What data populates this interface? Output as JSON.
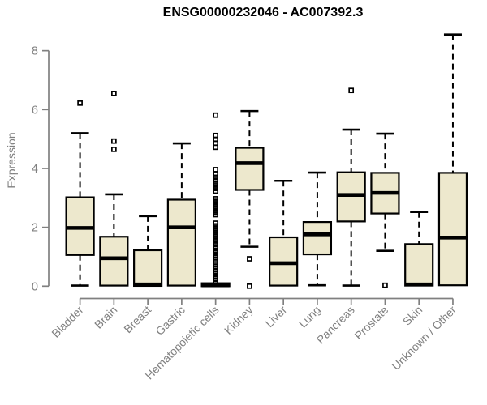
{
  "chart_data": {
    "type": "boxplot",
    "title": "ENSG00000232046 - AC007392.3",
    "ylabel": "Expression",
    "xlabel": "",
    "ylim": [
      0,
      8.6
    ],
    "yticks": [
      0,
      2,
      4,
      6,
      8
    ],
    "grid": false,
    "legend": "none",
    "categories": [
      "Bladder",
      "Brain",
      "Breast",
      "Gastric",
      "Hematopoietic cells",
      "Kidney",
      "Liver",
      "Lung",
      "Pancreas",
      "Prostate",
      "Skin",
      "Unknown / Other"
    ],
    "boxes": [
      {
        "category": "Bladder",
        "whisker_low": 0.02,
        "q1": 1.06,
        "median": 1.98,
        "q3": 3.02,
        "whisker_high": 5.2,
        "outliers": [
          6.22
        ]
      },
      {
        "category": "Brain",
        "whisker_low": 0.01,
        "q1": 0.02,
        "median": 0.95,
        "q3": 1.68,
        "whisker_high": 3.12,
        "outliers": [
          6.55,
          4.93,
          4.65
        ]
      },
      {
        "category": "Breast",
        "whisker_low": 0.0,
        "q1": 0.01,
        "median": 0.06,
        "q3": 1.22,
        "whisker_high": 2.38,
        "outliers": []
      },
      {
        "category": "Gastric",
        "whisker_low": 0.01,
        "q1": 0.02,
        "median": 2.0,
        "q3": 2.94,
        "whisker_high": 4.85,
        "outliers": []
      },
      {
        "category": "Hematopoietic cells",
        "whisker_low": 0.0,
        "q1": 0.0,
        "median": 0.03,
        "q3": 0.1,
        "whisker_high": 0.12,
        "outliers": [
          5.81,
          5.12,
          4.99,
          4.86,
          4.72,
          3.96,
          3.82,
          3.7,
          3.6,
          3.5,
          3.41,
          3.32,
          3.23,
          2.97,
          2.88,
          2.79,
          2.7,
          2.61,
          2.52,
          2.43,
          2.14,
          2.05,
          1.96,
          1.87,
          1.78,
          1.69,
          1.6,
          1.51,
          1.42,
          1.3,
          1.22,
          1.14,
          1.06,
          0.98,
          0.9,
          0.82,
          0.74,
          0.66,
          0.58,
          0.5,
          0.42,
          0.34,
          0.26,
          0.18,
          0.1
        ]
      },
      {
        "category": "Kidney",
        "whisker_low": 1.34,
        "q1": 3.27,
        "median": 4.18,
        "q3": 4.7,
        "whisker_high": 5.95,
        "outliers": [
          0.93,
          0.0
        ]
      },
      {
        "category": "Liver",
        "whisker_low": 0.01,
        "q1": 0.02,
        "median": 0.78,
        "q3": 1.66,
        "whisker_high": 3.58,
        "outliers": []
      },
      {
        "category": "Lung",
        "whisker_low": 0.03,
        "q1": 1.08,
        "median": 1.76,
        "q3": 2.18,
        "whisker_high": 3.86,
        "outliers": []
      },
      {
        "category": "Pancreas",
        "whisker_low": 0.02,
        "q1": 2.2,
        "median": 3.1,
        "q3": 3.87,
        "whisker_high": 5.32,
        "outliers": [
          6.65
        ]
      },
      {
        "category": "Prostate",
        "whisker_low": 1.2,
        "q1": 2.47,
        "median": 3.17,
        "q3": 3.85,
        "whisker_high": 5.18,
        "outliers": [
          0.03
        ]
      },
      {
        "category": "Skin",
        "whisker_low": 0.0,
        "q1": 0.02,
        "median": 0.06,
        "q3": 1.43,
        "whisker_high": 2.52,
        "outliers": []
      },
      {
        "category": "Unknown / Other",
        "whisker_low": 0.01,
        "q1": 0.03,
        "median": 1.65,
        "q3": 3.85,
        "whisker_high": 8.55,
        "outliers": []
      }
    ],
    "colors": {
      "box_fill": "#EDE8CD",
      "box_stroke": "#000000",
      "axis": "#808080",
      "tick_label": "#808080",
      "title": "#000000"
    }
  }
}
